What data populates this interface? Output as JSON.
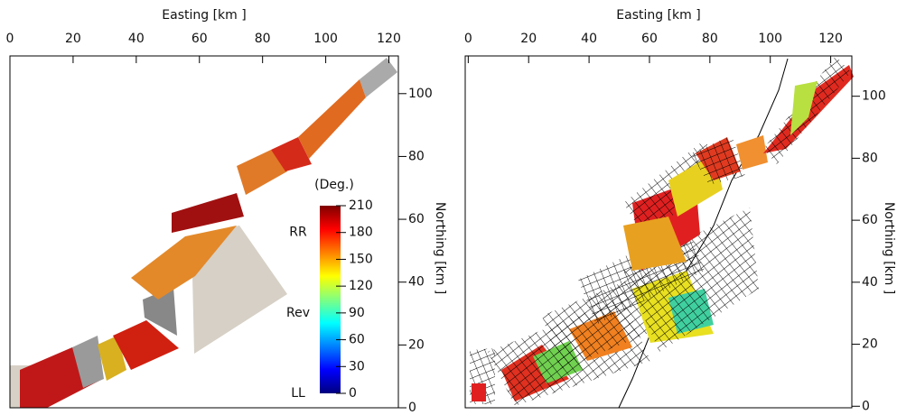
{
  "chart_data": [
    {
      "type": "map",
      "xlabel": "Easting [km ]",
      "ylabel": "Northing [km ]",
      "xlim": [
        0,
        123
      ],
      "ylim": [
        0,
        112
      ],
      "xticks": [
        0,
        20,
        40,
        60,
        80,
        100,
        120
      ],
      "yticks": [
        0,
        20,
        40,
        60,
        80,
        100
      ],
      "colorbar": {
        "title": "(Deg.)",
        "lim": [
          0,
          210
        ],
        "ticks": [
          0,
          30,
          60,
          90,
          120,
          150,
          180,
          210
        ],
        "colors": [
          "#00007f",
          "#0000ff",
          "#0080ff",
          "#00ffff",
          "#80ff80",
          "#ffff00",
          "#ff8000",
          "#ff0000",
          "#7f0000"
        ],
        "annotations": [
          {
            "value": 180,
            "label": "RR"
          },
          {
            "value": 90,
            "label": "Rev"
          },
          {
            "value": 0,
            "label": "LL"
          }
        ]
      }
    },
    {
      "type": "map",
      "xlabel": "Easting [km ]",
      "ylabel": "Northing [km ]",
      "xlim": [
        -1,
        127
      ],
      "ylim": [
        -0.5,
        113
      ],
      "xticks": [
        0,
        20,
        40,
        60,
        80,
        100,
        120
      ],
      "yticks": [
        0,
        20,
        40,
        60,
        80,
        100
      ]
    }
  ]
}
